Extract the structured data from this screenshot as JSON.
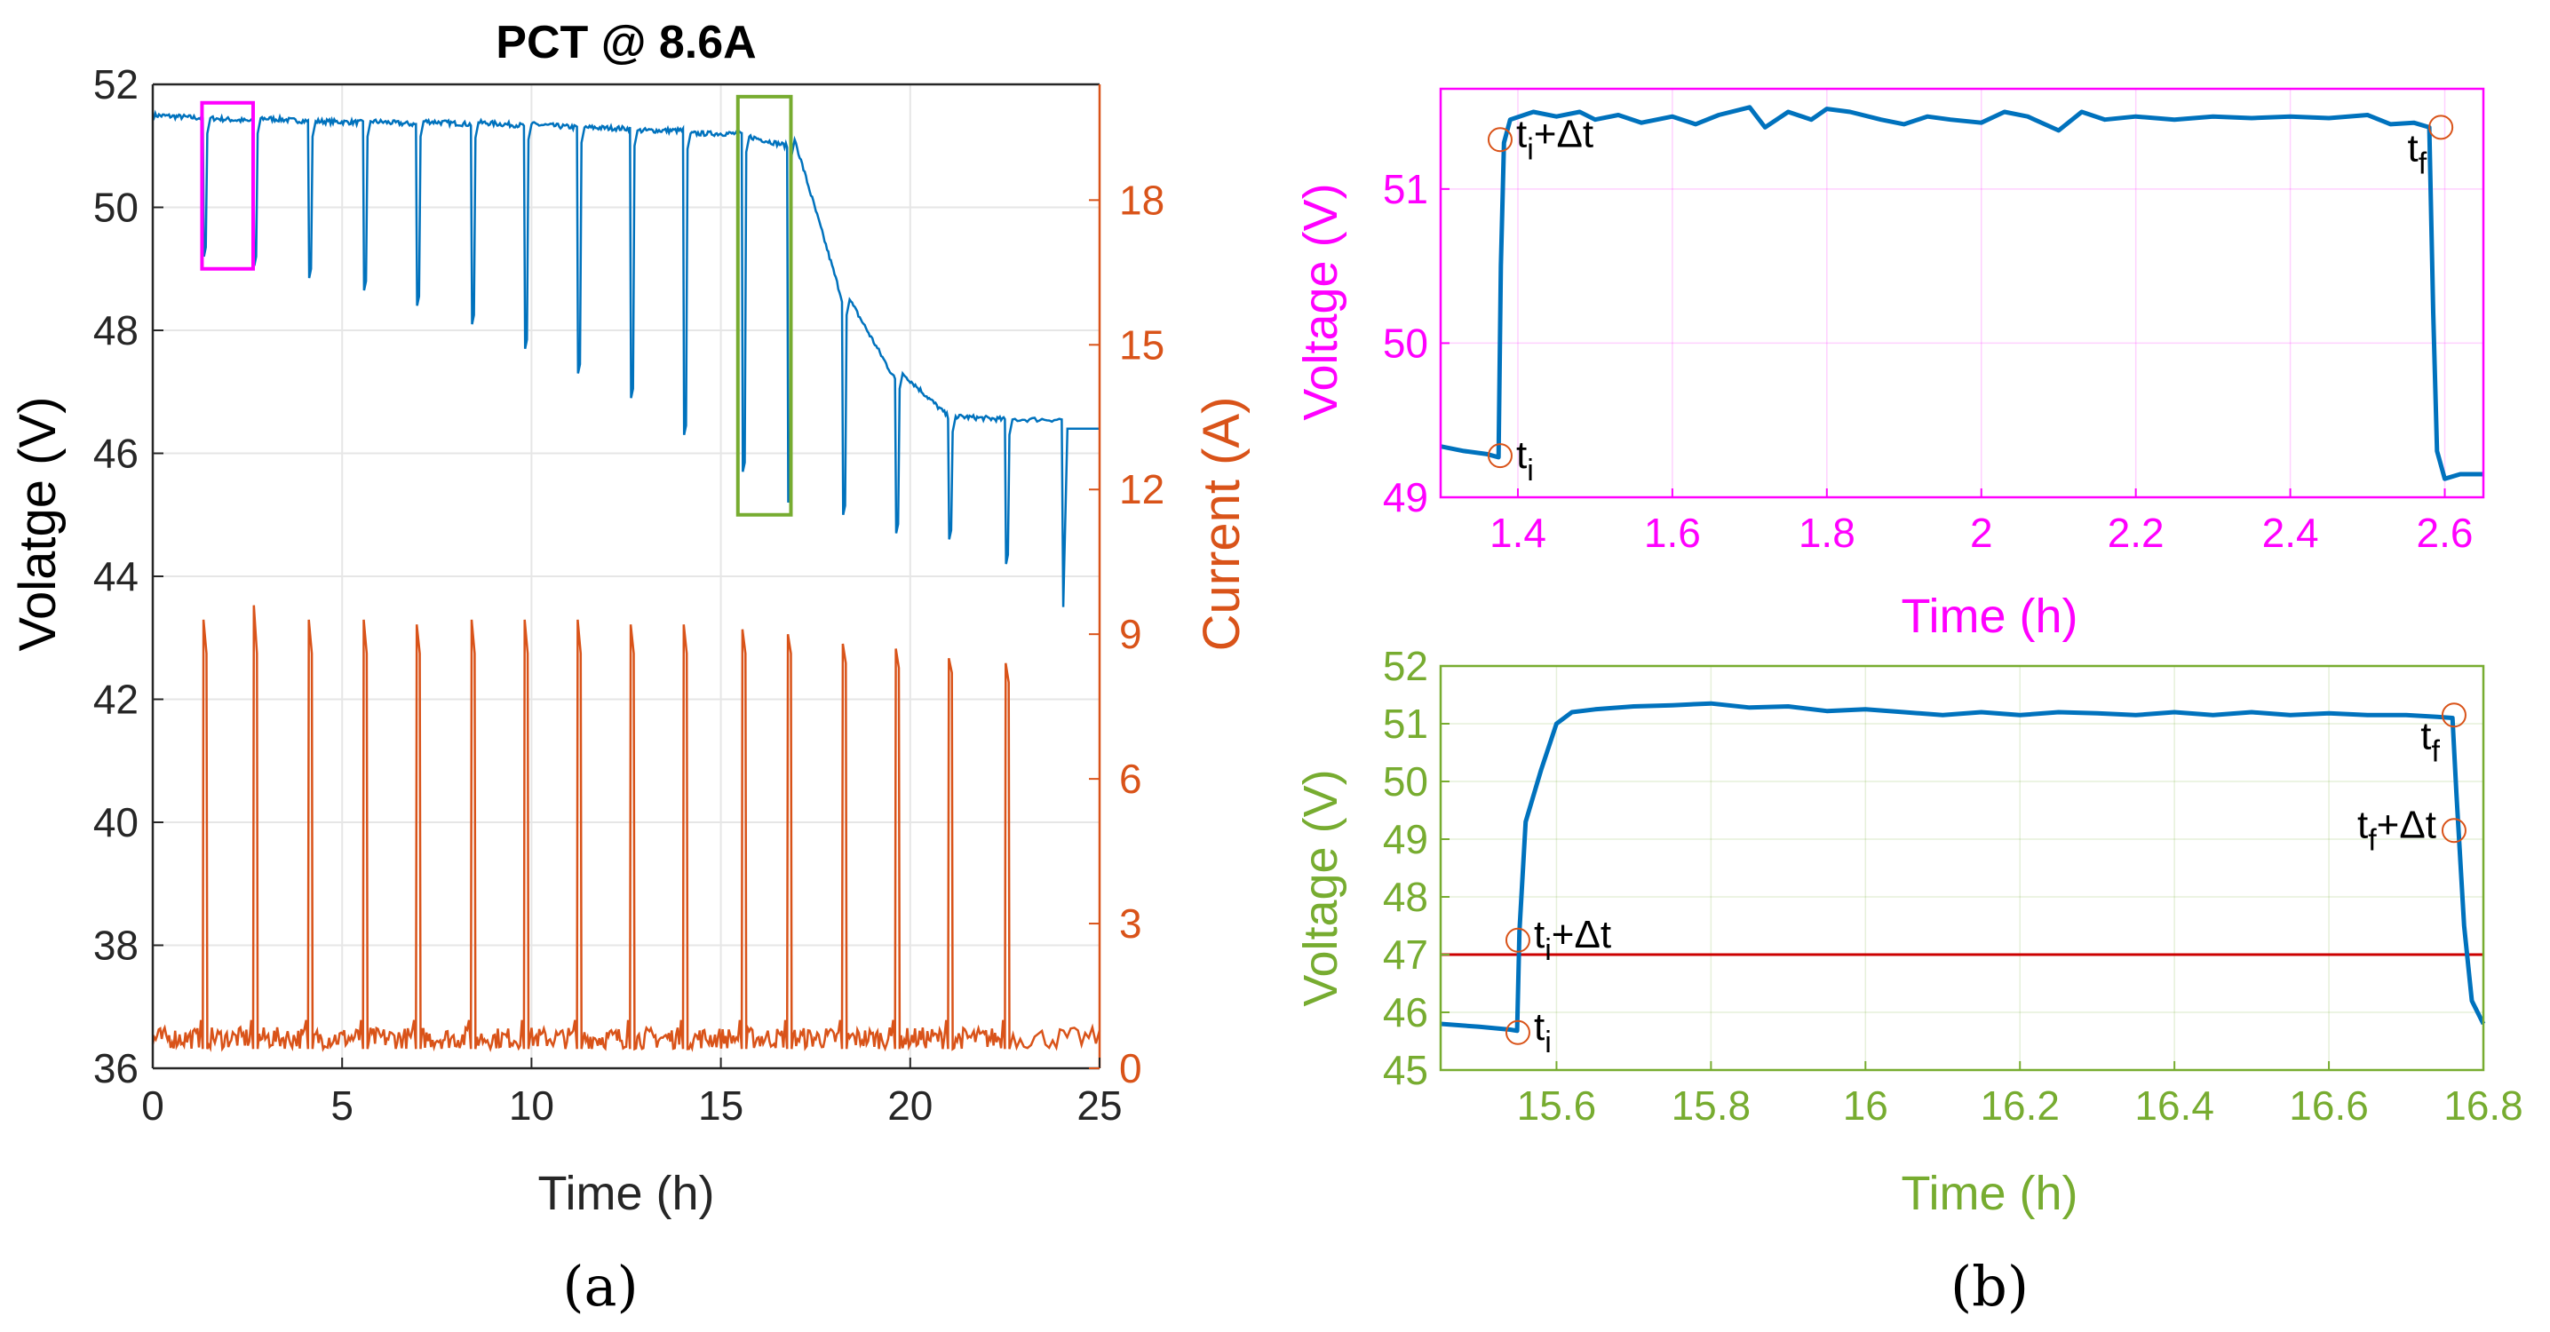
{
  "chart_data": [
    {
      "id": "a",
      "type": "line",
      "title": "PCT @ 8.6A",
      "caption": "(a)",
      "xlabel": "Time (h)",
      "ylabel_left": "Volatge (V)",
      "ylabel_right": "Current (A)",
      "xlim": [
        0,
        25
      ],
      "ylim_left": [
        36,
        52
      ],
      "ylim_right": [
        0,
        20.4
      ],
      "xticks": [
        0,
        5,
        10,
        15,
        20,
        25
      ],
      "xtick_labels": [
        "0",
        "5",
        "10",
        "15",
        "20",
        "25"
      ],
      "yticks_left": [
        36,
        38,
        40,
        42,
        44,
        46,
        48,
        50,
        52
      ],
      "ytick_labels_left": [
        "36",
        "38",
        "40",
        "42",
        "44",
        "46",
        "48",
        "50",
        "52"
      ],
      "yticks_right": [
        0,
        3,
        6,
        9,
        12,
        15,
        18
      ],
      "ytick_labels_right": [
        "0",
        "3",
        "6",
        "9",
        "12",
        "15",
        "18"
      ],
      "grid": true,
      "colors": {
        "voltage": "#0072BD",
        "current": "#D95319",
        "highlight_1": "#FF00FF",
        "highlight_2": "#77AC30",
        "axis": "#000000"
      },
      "pulses": [
        {
          "t0": 1.32,
          "t1": 2.65,
          "v_before": 51.45,
          "v_dip": 49.2,
          "v_plateau": 51.45,
          "i_peak": 9.3,
          "i_plateau": 8.6
        },
        {
          "t0": 2.65,
          "t1": 4.1,
          "v_before": 51.4,
          "v_dip": 49.05,
          "v_plateau": 51.45,
          "i_peak": 9.6,
          "i_plateau": 8.6
        },
        {
          "t0": 4.1,
          "t1": 5.55,
          "v_before": 51.4,
          "v_dip": 48.85,
          "v_plateau": 51.4,
          "i_peak": 9.3,
          "i_plateau": 8.6
        },
        {
          "t0": 5.55,
          "t1": 6.95,
          "v_before": 51.38,
          "v_dip": 48.65,
          "v_plateau": 51.4,
          "i_peak": 9.3,
          "i_plateau": 8.6
        },
        {
          "t0": 6.95,
          "t1": 8.4,
          "v_before": 51.35,
          "v_dip": 48.4,
          "v_plateau": 51.4,
          "i_peak": 9.2,
          "i_plateau": 8.6
        },
        {
          "t0": 8.4,
          "t1": 9.8,
          "v_before": 51.35,
          "v_dip": 48.1,
          "v_plateau": 51.38,
          "i_peak": 9.3,
          "i_plateau": 8.6
        },
        {
          "t0": 9.8,
          "t1": 11.2,
          "v_before": 51.33,
          "v_dip": 47.7,
          "v_plateau": 51.35,
          "i_peak": 9.3,
          "i_plateau": 8.6
        },
        {
          "t0": 11.2,
          "t1": 12.6,
          "v_before": 51.3,
          "v_dip": 47.3,
          "v_plateau": 51.3,
          "i_peak": 9.3,
          "i_plateau": 8.6
        },
        {
          "t0": 12.6,
          "t1": 14.0,
          "v_before": 51.28,
          "v_dip": 46.9,
          "v_plateau": 51.25,
          "i_peak": 9.2,
          "i_plateau": 8.6
        },
        {
          "t0": 14.0,
          "t1": 15.55,
          "v_before": 51.25,
          "v_dip": 46.3,
          "v_plateau": 51.2,
          "i_peak": 9.2,
          "i_plateau": 8.6
        },
        {
          "t0": 15.55,
          "t1": 16.75,
          "v_before": 51.2,
          "v_dip": 45.7,
          "v_plateau": 51.15,
          "i_peak": 9.1,
          "i_plateau": 8.6
        },
        {
          "t0": 16.75,
          "t1": 18.2,
          "v_before": 51.0,
          "v_dip": 45.2,
          "v_plateau": 51.1,
          "i_peak": 9.0,
          "i_plateau": 8.6
        },
        {
          "t0": 18.2,
          "t1": 19.6,
          "v_before": 48.5,
          "v_dip": 45.0,
          "v_plateau": 48.5,
          "i_peak": 8.8,
          "i_plateau": 8.4
        },
        {
          "t0": 19.6,
          "t1": 21.0,
          "v_before": 47.2,
          "v_dip": 44.7,
          "v_plateau": 47.3,
          "i_peak": 8.7,
          "i_plateau": 8.3
        },
        {
          "t0": 21.0,
          "t1": 22.5,
          "v_before": 46.6,
          "v_dip": 44.6,
          "v_plateau": 46.6,
          "i_peak": 8.5,
          "i_plateau": 8.2
        },
        {
          "t0": 22.5,
          "t1": 24.0,
          "v_before": 46.55,
          "v_dip": 44.2,
          "v_plateau": 46.55,
          "i_peak": 8.4,
          "i_plateau": 8.0
        }
      ],
      "voltage_end": {
        "t": 24.0,
        "dip": 43.5,
        "final": 46.4,
        "t_end": 25
      },
      "highlight_boxes": [
        {
          "name": "magenta",
          "x": [
            1.3,
            2.65
          ],
          "y": [
            49.0,
            51.7
          ]
        },
        {
          "name": "green",
          "x": [
            15.45,
            16.85
          ],
          "y": [
            45.0,
            51.8
          ]
        }
      ]
    },
    {
      "id": "b-top",
      "type": "line",
      "caption": "(b)",
      "xlabel": "Time (h)",
      "ylabel": "Voltage (V)",
      "xlim": [
        1.3,
        2.65
      ],
      "ylim": [
        49,
        51.65
      ],
      "xticks": [
        1.4,
        1.6,
        1.8,
        2,
        2.2,
        2.4,
        2.6
      ],
      "xtick_labels": [
        "1.4",
        "1.6",
        "1.8",
        "2",
        "2.2",
        "2.4",
        "2.6"
      ],
      "yticks": [
        49,
        50,
        51
      ],
      "ytick_labels": [
        "49",
        "50",
        "51"
      ],
      "grid": true,
      "axis_color": "#FF00FF",
      "line_color": "#0072BD",
      "series": [
        {
          "name": "voltage",
          "x": [
            1.3,
            1.33,
            1.36,
            1.375,
            1.378,
            1.382,
            1.39,
            1.42,
            1.45,
            1.48,
            1.5,
            1.53,
            1.56,
            1.6,
            1.63,
            1.66,
            1.7,
            1.72,
            1.75,
            1.78,
            1.8,
            1.83,
            1.87,
            1.9,
            1.93,
            1.96,
            2.0,
            2.03,
            2.06,
            2.1,
            2.13,
            2.16,
            2.2,
            2.25,
            2.3,
            2.35,
            2.4,
            2.45,
            2.5,
            2.53,
            2.56,
            2.58,
            2.585,
            2.59,
            2.6,
            2.62,
            2.65
          ],
          "y": [
            49.33,
            49.3,
            49.28,
            49.26,
            50.5,
            51.3,
            51.45,
            51.5,
            51.47,
            51.5,
            51.45,
            51.48,
            51.43,
            51.47,
            51.42,
            51.48,
            51.53,
            51.4,
            51.5,
            51.45,
            51.52,
            51.5,
            51.45,
            51.42,
            51.47,
            51.45,
            51.43,
            51.5,
            51.47,
            51.38,
            51.5,
            51.45,
            51.47,
            51.45,
            51.47,
            51.46,
            51.47,
            51.46,
            51.48,
            51.42,
            51.43,
            51.4,
            50.2,
            49.3,
            49.12,
            49.15,
            49.15
          ]
        }
      ],
      "markers": [
        {
          "label": "t",
          "sub": "i",
          "suffix": "",
          "x": 1.377,
          "y": 49.27,
          "text_side": "right-below"
        },
        {
          "label": "t",
          "sub": "i",
          "suffix": "+Δt",
          "x": 1.377,
          "y": 51.32,
          "text_side": "right"
        },
        {
          "label": "t",
          "sub": "f",
          "suffix": "",
          "x": 2.595,
          "y": 51.4,
          "text_side": "left-below"
        }
      ]
    },
    {
      "id": "b-bottom",
      "type": "line",
      "xlabel": "Time (h)",
      "ylabel": "Voltage (V)",
      "xlim": [
        15.45,
        16.8
      ],
      "ylim": [
        45,
        52
      ],
      "xticks": [
        15.6,
        15.8,
        16,
        16.2,
        16.4,
        16.6,
        16.8
      ],
      "xtick_labels": [
        "15.6",
        "15.8",
        "16",
        "16.2",
        "16.4",
        "16.6",
        "16.8"
      ],
      "yticks": [
        45,
        46,
        47,
        48,
        49,
        50,
        51,
        52
      ],
      "ytick_labels": [
        "45",
        "46",
        "47",
        "48",
        "49",
        "50",
        "51",
        "52"
      ],
      "grid": true,
      "axis_color": "#77AC30",
      "line_color": "#0072BD",
      "threshold": {
        "y": 47,
        "color": "#CC0000"
      },
      "series": [
        {
          "name": "voltage",
          "x": [
            15.45,
            15.5,
            15.54,
            15.549,
            15.552,
            15.56,
            15.58,
            15.6,
            15.62,
            15.65,
            15.7,
            15.75,
            15.8,
            15.85,
            15.9,
            15.95,
            16.0,
            16.05,
            16.1,
            16.15,
            16.2,
            16.25,
            16.3,
            16.35,
            16.4,
            16.45,
            16.5,
            16.55,
            16.6,
            16.65,
            16.7,
            16.74,
            16.76,
            16.765,
            16.775,
            16.785,
            16.8
          ],
          "y": [
            45.8,
            45.75,
            45.7,
            45.68,
            47.4,
            49.3,
            50.2,
            51.0,
            51.2,
            51.25,
            51.3,
            51.32,
            51.35,
            51.28,
            51.3,
            51.22,
            51.25,
            51.2,
            51.15,
            51.2,
            51.15,
            51.2,
            51.18,
            51.15,
            51.2,
            51.15,
            51.2,
            51.15,
            51.18,
            51.15,
            51.15,
            51.12,
            51.1,
            49.8,
            47.5,
            46.2,
            45.8
          ]
        }
      ],
      "markers": [
        {
          "label": "t",
          "sub": "i",
          "suffix": "",
          "x": 15.55,
          "y": 45.65,
          "text_side": "right"
        },
        {
          "label": "t",
          "sub": "i",
          "suffix": "+Δt",
          "x": 15.55,
          "y": 47.25,
          "text_side": "right"
        },
        {
          "label": "t",
          "sub": "f",
          "suffix": "",
          "x": 16.762,
          "y": 51.15,
          "text_side": "left-below"
        },
        {
          "label": "t",
          "sub": "f",
          "suffix": "+Δt",
          "x": 16.762,
          "y": 49.15,
          "text_side": "left"
        }
      ]
    }
  ]
}
